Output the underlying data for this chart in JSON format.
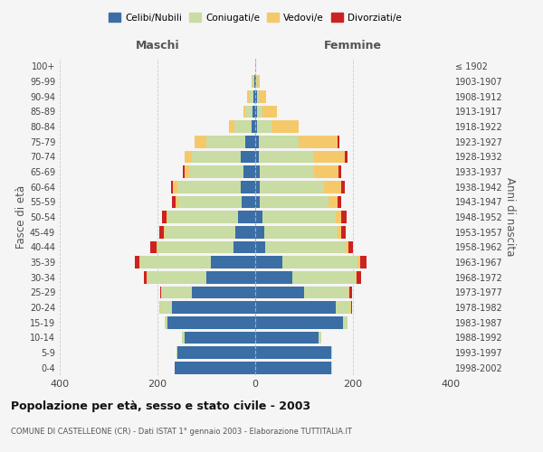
{
  "age_groups": [
    "0-4",
    "5-9",
    "10-14",
    "15-19",
    "20-24",
    "25-29",
    "30-34",
    "35-39",
    "40-44",
    "45-49",
    "50-54",
    "55-59",
    "60-64",
    "65-69",
    "70-74",
    "75-79",
    "80-84",
    "85-89",
    "90-94",
    "95-99",
    "100+"
  ],
  "birth_years": [
    "1998-2002",
    "1993-1997",
    "1988-1992",
    "1983-1987",
    "1978-1982",
    "1973-1977",
    "1968-1972",
    "1963-1967",
    "1958-1962",
    "1953-1957",
    "1948-1952",
    "1943-1947",
    "1938-1942",
    "1933-1937",
    "1928-1932",
    "1923-1927",
    "1918-1922",
    "1913-1917",
    "1908-1912",
    "1903-1907",
    "≤ 1902"
  ],
  "maschi": {
    "celibi": [
      165,
      160,
      145,
      180,
      170,
      130,
      100,
      90,
      45,
      40,
      35,
      28,
      30,
      25,
      30,
      20,
      8,
      5,
      3,
      2,
      0
    ],
    "coniugati": [
      0,
      2,
      5,
      5,
      25,
      60,
      120,
      145,
      155,
      145,
      145,
      130,
      130,
      110,
      100,
      80,
      35,
      15,
      8,
      3,
      0
    ],
    "vedovi": [
      0,
      0,
      0,
      0,
      1,
      2,
      2,
      2,
      2,
      2,
      2,
      5,
      8,
      10,
      15,
      25,
      10,
      5,
      5,
      2,
      0
    ],
    "divorziati": [
      0,
      0,
      0,
      0,
      1,
      3,
      5,
      10,
      12,
      10,
      8,
      7,
      5,
      3,
      0,
      0,
      0,
      0,
      0,
      0,
      0
    ]
  },
  "femmine": {
    "nubili": [
      155,
      155,
      130,
      180,
      165,
      100,
      75,
      55,
      20,
      18,
      15,
      10,
      10,
      10,
      8,
      8,
      3,
      3,
      3,
      2,
      0
    ],
    "coniugate": [
      2,
      2,
      5,
      8,
      30,
      90,
      130,
      155,
      165,
      150,
      150,
      140,
      130,
      110,
      110,
      80,
      30,
      12,
      5,
      2,
      0
    ],
    "vedove": [
      0,
      0,
      0,
      0,
      2,
      3,
      3,
      5,
      5,
      8,
      10,
      18,
      35,
      50,
      65,
      80,
      55,
      30,
      15,
      5,
      0
    ],
    "divorziate": [
      0,
      0,
      0,
      0,
      2,
      5,
      8,
      12,
      10,
      10,
      12,
      8,
      8,
      5,
      5,
      5,
      0,
      0,
      0,
      0,
      0
    ]
  },
  "colors": {
    "celibi": "#3a6ea5",
    "coniugati": "#c8dca4",
    "vedovi": "#f5c96a",
    "divorziati": "#cc2222"
  },
  "title": "Popolazione per età, sesso e stato civile - 2003",
  "subtitle": "COMUNE DI CASTELLEONE (CR) - Dati ISTAT 1° gennaio 2003 - Elaborazione TUTTITALIA.IT",
  "xlabel_left": "Maschi",
  "xlabel_right": "Femmine",
  "ylabel_left": "Fasce di età",
  "ylabel_right": "Anni di nascita",
  "xlim": 400,
  "legend_labels": [
    "Celibi/Nubili",
    "Coniugati/e",
    "Vedovi/e",
    "Divorziati/e"
  ],
  "bg_color": "#f5f5f5"
}
